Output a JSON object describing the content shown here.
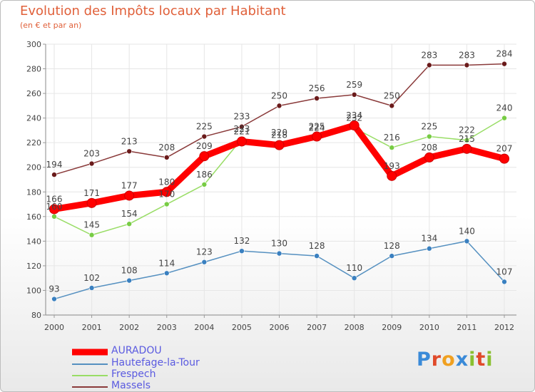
{
  "title": "Evolution des Impôts locaux par Habitant",
  "subtitle": "(en € et par an)",
  "brand": "Proxiti",
  "chart_data": {
    "type": "line",
    "title": "Evolution des Impôts locaux par Habitant",
    "subtitle": "(en € et par an)",
    "xlabel": "",
    "ylabel": "",
    "ylim": [
      80,
      300
    ],
    "yticks": [
      80,
      100,
      120,
      140,
      160,
      180,
      200,
      220,
      240,
      260,
      280,
      300
    ],
    "grid": true,
    "legend": "bottom-left",
    "categories": [
      "2000",
      "2001",
      "2002",
      "2003",
      "2004",
      "2005",
      "2006",
      "2007",
      "2008",
      "2009",
      "2010",
      "2011",
      "2012"
    ],
    "series": [
      {
        "name": "Massels",
        "color": "#8a3a3a",
        "marker": "#6a1a1a",
        "values": [
          194,
          203,
          213,
          208,
          225,
          233,
          250,
          256,
          259,
          250,
          283,
          283,
          284
        ]
      },
      {
        "name": "Hautefage-la-Tour",
        "color": "#5590c0",
        "marker": "#3a80c0",
        "values": [
          93,
          102,
          108,
          114,
          123,
          132,
          130,
          128,
          110,
          128,
          134,
          140,
          107
        ]
      },
      {
        "name": "Frespech",
        "color": "#99dd66",
        "marker": "#77cc44",
        "values": [
          160,
          145,
          154,
          170,
          186,
          223,
          220,
          224,
          232,
          216,
          225,
          222,
          240
        ]
      },
      {
        "name": "AURADOU",
        "color": "#ff0000",
        "marker": "#ff0000",
        "values": [
          166,
          171,
          177,
          180,
          209,
          221,
          218,
          225,
          234,
          193,
          208,
          215,
          207
        ]
      }
    ]
  }
}
